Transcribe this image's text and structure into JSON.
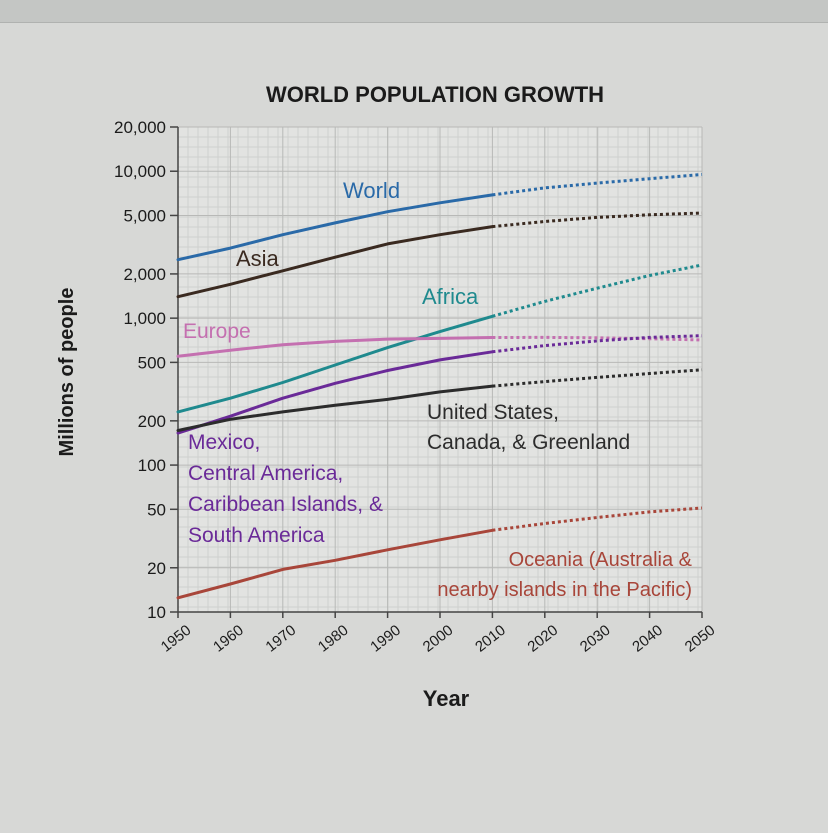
{
  "chart_data": {
    "type": "line",
    "title": "WORLD POPULATION GROWTH",
    "xlabel": "Year",
    "ylabel": "Millions of people",
    "yscale": "log",
    "xlim": [
      1950,
      2050
    ],
    "ylim": [
      10,
      20000
    ],
    "x_ticks": [
      "1950",
      "1960",
      "1970",
      "1980",
      "1990",
      "2000",
      "2010",
      "2020",
      "2030",
      "2040",
      "2050"
    ],
    "y_ticks": [
      {
        "value": 10,
        "label": "10"
      },
      {
        "value": 20,
        "label": "20"
      },
      {
        "value": 50,
        "label": "50"
      },
      {
        "value": 100,
        "label": "100"
      },
      {
        "value": 200,
        "label": "200"
      },
      {
        "value": 500,
        "label": "500"
      },
      {
        "value": 1000,
        "label": "1,000"
      },
      {
        "value": 2000,
        "label": "2,000"
      },
      {
        "value": 5000,
        "label": "5,000"
      },
      {
        "value": 10000,
        "label": "10,000"
      },
      {
        "value": 20000,
        "label": "20,000"
      }
    ],
    "grid": true,
    "projection_style": "dotted after 2010",
    "series": [
      {
        "key": "world",
        "label_lines": [
          "World"
        ],
        "color": "#2a6aa8",
        "actual": [
          [
            1950,
            2500
          ],
          [
            1960,
            3000
          ],
          [
            1970,
            3700
          ],
          [
            1980,
            4450
          ],
          [
            1990,
            5300
          ],
          [
            2000,
            6100
          ],
          [
            2010,
            6900
          ]
        ],
        "projected": [
          [
            2010,
            6900
          ],
          [
            2020,
            7700
          ],
          [
            2030,
            8300
          ],
          [
            2040,
            8900
          ],
          [
            2050,
            9500
          ]
        ]
      },
      {
        "key": "asia",
        "label_lines": [
          "Asia"
        ],
        "color": "#3a2a20",
        "actual": [
          [
            1950,
            1400
          ],
          [
            1960,
            1700
          ],
          [
            1970,
            2100
          ],
          [
            1980,
            2600
          ],
          [
            1990,
            3200
          ],
          [
            2000,
            3700
          ],
          [
            2010,
            4200
          ]
        ],
        "projected": [
          [
            2010,
            4200
          ],
          [
            2020,
            4550
          ],
          [
            2030,
            4850
          ],
          [
            2040,
            5050
          ],
          [
            2050,
            5200
          ]
        ]
      },
      {
        "key": "africa",
        "label_lines": [
          "Africa"
        ],
        "color": "#1f8a8e",
        "actual": [
          [
            1950,
            230
          ],
          [
            1960,
            285
          ],
          [
            1970,
            365
          ],
          [
            1980,
            480
          ],
          [
            1990,
            630
          ],
          [
            2000,
            810
          ],
          [
            2010,
            1030
          ]
        ],
        "projected": [
          [
            2010,
            1030
          ],
          [
            2020,
            1300
          ],
          [
            2030,
            1600
          ],
          [
            2040,
            1950
          ],
          [
            2050,
            2300
          ]
        ]
      },
      {
        "key": "europe",
        "label_lines": [
          "Europe"
        ],
        "color": "#c470b0",
        "actual": [
          [
            1950,
            550
          ],
          [
            1960,
            605
          ],
          [
            1970,
            660
          ],
          [
            1980,
            695
          ],
          [
            1990,
            720
          ],
          [
            2000,
            728
          ],
          [
            2010,
            738
          ]
        ],
        "projected": [
          [
            2010,
            738
          ],
          [
            2020,
            740
          ],
          [
            2030,
            735
          ],
          [
            2040,
            725
          ],
          [
            2050,
            710
          ]
        ]
      },
      {
        "key": "latin_america",
        "label_lines": [
          "Mexico,",
          "Central America,",
          "Caribbean Islands, &",
          "South America"
        ],
        "color": "#6a2a98",
        "actual": [
          [
            1950,
            165
          ],
          [
            1960,
            215
          ],
          [
            1970,
            285
          ],
          [
            1980,
            360
          ],
          [
            1990,
            440
          ],
          [
            2000,
            520
          ],
          [
            2010,
            590
          ]
        ],
        "projected": [
          [
            2010,
            590
          ],
          [
            2020,
            650
          ],
          [
            2030,
            700
          ],
          [
            2040,
            740
          ],
          [
            2050,
            760
          ]
        ]
      },
      {
        "key": "north_america",
        "label_lines": [
          "United States,",
          "Canada, & Greenland"
        ],
        "color": "#2c2c2c",
        "actual": [
          [
            1950,
            172
          ],
          [
            1960,
            205
          ],
          [
            1970,
            230
          ],
          [
            1980,
            255
          ],
          [
            1990,
            280
          ],
          [
            2000,
            315
          ],
          [
            2010,
            345
          ]
        ],
        "projected": [
          [
            2010,
            345
          ],
          [
            2020,
            370
          ],
          [
            2030,
            395
          ],
          [
            2040,
            420
          ],
          [
            2050,
            445
          ]
        ]
      },
      {
        "key": "oceania",
        "label_lines": [
          "Oceania (Australia &",
          "nearby islands in the Pacific)"
        ],
        "color": "#a8463a",
        "actual": [
          [
            1950,
            12.5
          ],
          [
            1960,
            15.5
          ],
          [
            1970,
            19.5
          ],
          [
            1980,
            22.5
          ],
          [
            1990,
            26.5
          ],
          [
            2000,
            31
          ],
          [
            2010,
            36
          ]
        ],
        "projected": [
          [
            2010,
            36
          ],
          [
            2020,
            40
          ],
          [
            2030,
            44
          ],
          [
            2040,
            48
          ],
          [
            2050,
            51
          ]
        ]
      }
    ]
  }
}
